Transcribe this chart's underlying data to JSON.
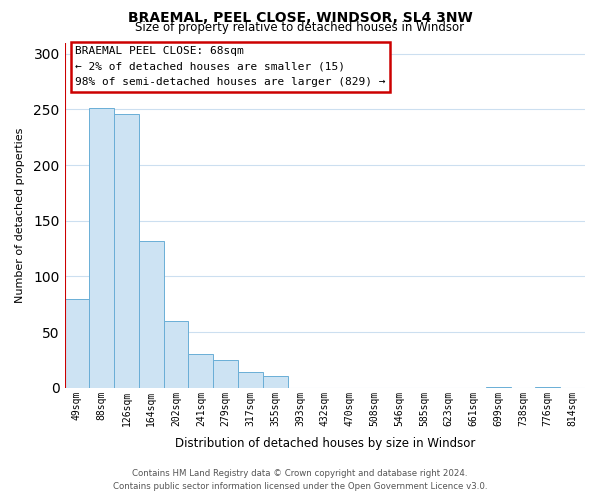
{
  "title": "BRAEMAL, PEEL CLOSE, WINDSOR, SL4 3NW",
  "subtitle": "Size of property relative to detached houses in Windsor",
  "xlabel": "Distribution of detached houses by size in Windsor",
  "ylabel": "Number of detached properties",
  "categories": [
    "49sqm",
    "88sqm",
    "126sqm",
    "164sqm",
    "202sqm",
    "241sqm",
    "279sqm",
    "317sqm",
    "355sqm",
    "393sqm",
    "432sqm",
    "470sqm",
    "508sqm",
    "546sqm",
    "585sqm",
    "623sqm",
    "661sqm",
    "699sqm",
    "738sqm",
    "776sqm",
    "814sqm"
  ],
  "values": [
    80,
    251,
    246,
    132,
    60,
    30,
    25,
    14,
    11,
    0,
    0,
    0,
    0,
    0,
    0,
    0,
    0,
    1,
    0,
    1,
    0
  ],
  "bar_color": "#cde3f3",
  "bar_edge_color": "#6aaed6",
  "annotation_title": "BRAEMAL PEEL CLOSE: 68sqm",
  "annotation_line1": "← 2% of detached houses are smaller (15)",
  "annotation_line2": "98% of semi-detached houses are larger (829) →",
  "annotation_box_color": "#ffffff",
  "annotation_box_edge_color": "#cc0000",
  "red_line_color": "#cc0000",
  "ylim": [
    0,
    310
  ],
  "yticks": [
    0,
    50,
    100,
    150,
    200,
    250,
    300
  ],
  "footer_line1": "Contains HM Land Registry data © Crown copyright and database right 2024.",
  "footer_line2": "Contains public sector information licensed under the Open Government Licence v3.0.",
  "bg_color": "#ffffff",
  "grid_color": "#ccdff0"
}
